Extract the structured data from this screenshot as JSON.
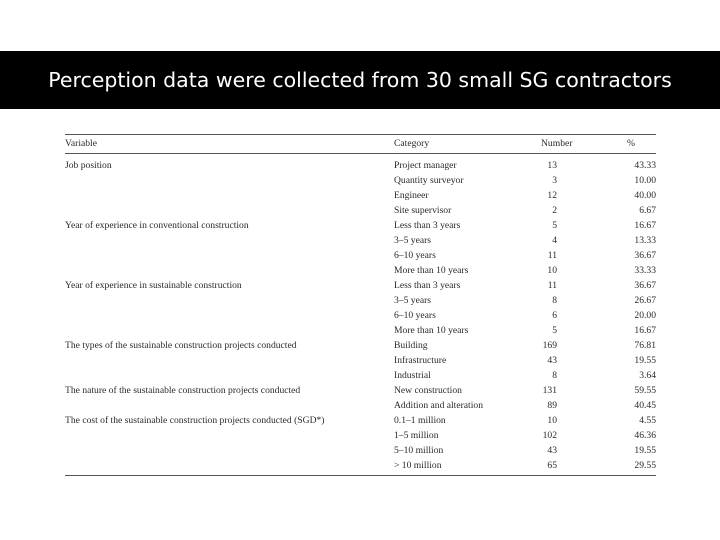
{
  "slide": {
    "title": "Perception data were collected from 30 small SG contractors"
  },
  "table": {
    "headers": {
      "variable": "Variable",
      "category": "Category",
      "number": "Number",
      "percent": "%"
    },
    "rows": [
      {
        "variable": "Job position",
        "category": "Project manager",
        "number": "13",
        "percent": "43.33"
      },
      {
        "variable": "",
        "category": "Quantity surveyor",
        "number": "3",
        "percent": "10.00"
      },
      {
        "variable": "",
        "category": "Engineer",
        "number": "12",
        "percent": "40.00"
      },
      {
        "variable": "",
        "category": "Site supervisor",
        "number": "2",
        "percent": "6.67"
      },
      {
        "variable": "Year of experience in conventional construction",
        "category": "Less than 3 years",
        "number": "5",
        "percent": "16.67"
      },
      {
        "variable": "",
        "category": "3–5 years",
        "number": "4",
        "percent": "13.33"
      },
      {
        "variable": "",
        "category": "6–10 years",
        "number": "11",
        "percent": "36.67"
      },
      {
        "variable": "",
        "category": "More than 10 years",
        "number": "10",
        "percent": "33.33"
      },
      {
        "variable": "Year of experience in sustainable construction",
        "category": "Less than 3 years",
        "number": "11",
        "percent": "36.67"
      },
      {
        "variable": "",
        "category": "3–5 years",
        "number": "8",
        "percent": "26.67"
      },
      {
        "variable": "",
        "category": "6–10 years",
        "number": "6",
        "percent": "20.00"
      },
      {
        "variable": "",
        "category": "More than 10 years",
        "number": "5",
        "percent": "16.67"
      },
      {
        "variable": "The types of the sustainable construction projects conducted",
        "category": "Building",
        "number": "169",
        "percent": "76.81"
      },
      {
        "variable": "",
        "category": "Infrastructure",
        "number": "43",
        "percent": "19.55"
      },
      {
        "variable": "",
        "category": "Industrial",
        "number": "8",
        "percent": "3.64"
      },
      {
        "variable": "The nature of the sustainable construction projects conducted",
        "category": "New construction",
        "number": "131",
        "percent": "59.55"
      },
      {
        "variable": "",
        "category": "Addition and alteration",
        "number": "89",
        "percent": "40.45"
      },
      {
        "variable": "The cost of the sustainable construction projects conducted (SGD*)",
        "category": "0.1–1 million",
        "number": "10",
        "percent": "4.55"
      },
      {
        "variable": "",
        "category": "1–5 million",
        "number": "102",
        "percent": "46.36"
      },
      {
        "variable": "",
        "category": "5–10 million",
        "number": "43",
        "percent": "19.55"
      },
      {
        "variable": "",
        "category": "> 10 million",
        "number": "65",
        "percent": "29.55"
      }
    ]
  }
}
